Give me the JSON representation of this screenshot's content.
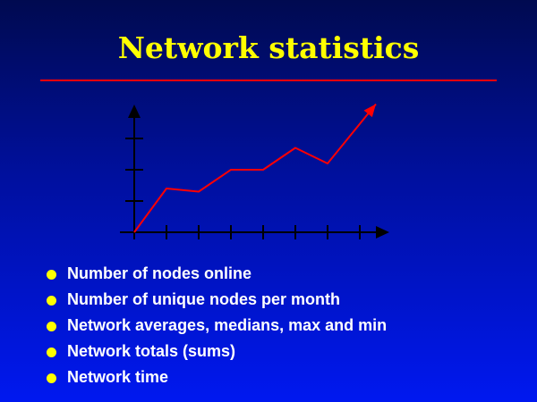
{
  "slide": {
    "title": "Network statistics",
    "title_color": "#ffff00",
    "rule_color": "#ff0000",
    "bullet_color": "#ffff00",
    "bullet_icon": "filled-circle",
    "bullets": [
      "Number of nodes online",
      "Number of unique nodes per month",
      "Network averages, medians, max and min",
      "Network totals (sums)",
      "Network time"
    ]
  },
  "chart_data": {
    "type": "line",
    "title": "",
    "xlabel": "",
    "ylabel": "",
    "x_ticks": 7,
    "y_ticks": 3,
    "x": [
      0,
      1,
      2,
      3,
      4,
      5,
      6,
      7.5
    ],
    "values": [
      0,
      1.4,
      1.3,
      2.0,
      2.0,
      2.7,
      2.2,
      4.1
    ],
    "xlim": [
      0,
      8
    ],
    "ylim": [
      0,
      4.2
    ],
    "line_color": "#ff0000",
    "axis_color": "#000000",
    "end_arrow": true
  }
}
